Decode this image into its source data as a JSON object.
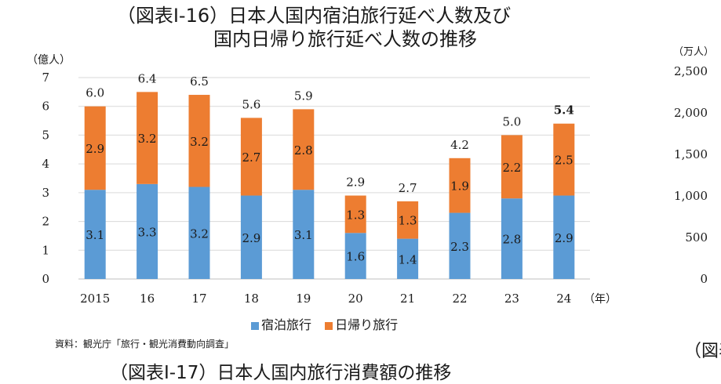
{
  "titles": {
    "line1": "（図表Ⅰ-16）日本人国内宿泊旅行延べ人数及び",
    "line2": "国内日帰り旅行延べ人数の推移",
    "footer": "（図表Ⅰ-17）日本人国内旅行消費額の推移",
    "right_fragment": "（図表"
  },
  "source": "資料：観光庁「旅行・観光消費動向調査」",
  "colors": {
    "stay": "#5b9bd5",
    "day": "#ed7d31",
    "grid": "#d9d9d9"
  },
  "chart_data": [
    {
      "type": "bar",
      "stacked": true,
      "categories": [
        "2015",
        "16",
        "17",
        "18",
        "19",
        "20",
        "21",
        "22",
        "23",
        "24"
      ],
      "series": [
        {
          "name": "宿泊旅行",
          "values": [
            3.1,
            3.3,
            3.2,
            2.9,
            3.1,
            1.6,
            1.4,
            2.3,
            2.8,
            2.9
          ]
        },
        {
          "name": "日帰り旅行",
          "values": [
            2.9,
            3.2,
            3.2,
            2.7,
            2.8,
            1.3,
            1.3,
            1.9,
            2.2,
            2.5
          ]
        }
      ],
      "totals": [
        "6.0",
        "6.4",
        "6.5",
        "5.6",
        "5.9",
        "2.9",
        "2.7",
        "4.2",
        "5.0",
        "5.4"
      ],
      "yunit": "（億人）",
      "xunit": "（年）",
      "ylim": [
        0,
        7
      ],
      "yticks": [
        "0",
        "1",
        "2",
        "3",
        "4",
        "5",
        "6",
        "7"
      ],
      "grid": true,
      "legend_position": "bottom"
    },
    {
      "type": "bar",
      "yunit": "（万人）",
      "ylim": [
        0,
        2500
      ],
      "yticks": [
        "0",
        "500",
        "1,000",
        "1,500",
        "2,000",
        "2,500"
      ],
      "note": "partially visible chart cropped at right edge"
    }
  ]
}
